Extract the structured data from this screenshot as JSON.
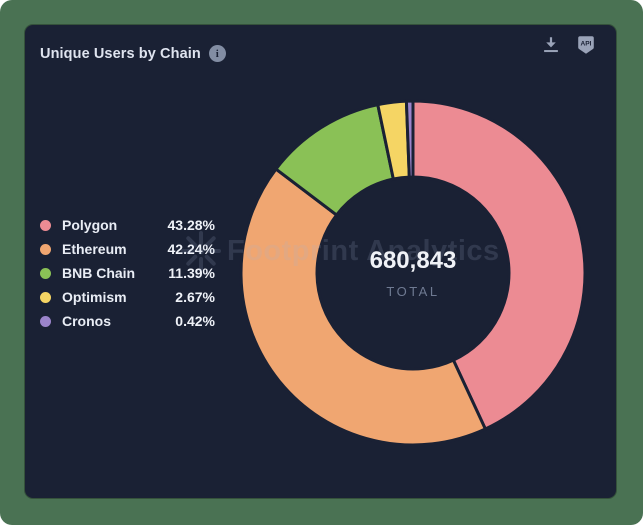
{
  "header": {
    "title": "Unique Users by Chain"
  },
  "toolbar": {
    "download_tooltip": "Download",
    "api_label": "API"
  },
  "watermark": {
    "text": "Footprint Analytics"
  },
  "center": {
    "value": "680,843",
    "label": "TOTAL"
  },
  "colors": {
    "frame_bg": "#4a7253",
    "card_bg": "#1a2134",
    "icon_gray": "#9aa3b8",
    "title_text": "#dfe4ef",
    "total_label": "#6f7a92"
  },
  "chart_data": {
    "type": "pie",
    "donut": true,
    "title": "Unique Users by Chain",
    "total": 680843,
    "total_display": "680,843",
    "legend_position": "left",
    "start_angle_deg": 0,
    "direction": "clockwise",
    "series": [
      {
        "name": "Polygon",
        "percent": 43.28,
        "percent_label": "43.28%",
        "color": "#ec8b93"
      },
      {
        "name": "Ethereum",
        "percent": 42.24,
        "percent_label": "42.24%",
        "color": "#f0a671"
      },
      {
        "name": "BNB Chain",
        "percent": 11.39,
        "percent_label": "11.39%",
        "color": "#8ac156"
      },
      {
        "name": "Optimism",
        "percent": 2.67,
        "percent_label": "2.67%",
        "color": "#f5d564"
      },
      {
        "name": "Cronos",
        "percent": 0.42,
        "percent_label": "0.42%",
        "color": "#9b84cb"
      }
    ]
  }
}
